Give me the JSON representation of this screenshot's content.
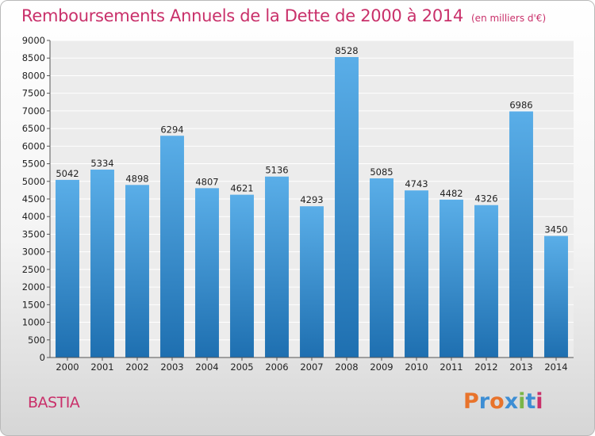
{
  "title": "Remboursements Annuels de la Dette de 2000 à 2014",
  "subtitle": "(en milliers d'€)",
  "commune": "BASTIA",
  "logo": {
    "text": "Proxiti",
    "letter_colors": [
      "#e8732b",
      "#3d8ed4",
      "#e8732b",
      "#3d8ed4",
      "#7ab648",
      "#3d8ed4",
      "#c9306a"
    ]
  },
  "colors": {
    "title": "#c9306a",
    "bar_top": "#5aaee8",
    "bar_bottom": "#1e6fb0"
  },
  "chart_data": {
    "type": "bar",
    "title": "Remboursements Annuels de la Dette de 2000 à 2014",
    "subtitle": "(en milliers d'€)",
    "xlabel": "",
    "ylabel": "",
    "categories": [
      "2000",
      "2001",
      "2002",
      "2003",
      "2004",
      "2005",
      "2006",
      "2007",
      "2008",
      "2009",
      "2010",
      "2011",
      "2012",
      "2013",
      "2014"
    ],
    "values": [
      5042,
      5334,
      4898,
      6294,
      4807,
      4621,
      5136,
      4293,
      8528,
      5085,
      4743,
      4482,
      4326,
      6986,
      3450
    ],
    "ylim": [
      0,
      9000
    ],
    "yticks": [
      0,
      500,
      1000,
      1500,
      2000,
      2500,
      3000,
      3500,
      4000,
      4500,
      5000,
      5500,
      6000,
      6500,
      7000,
      7500,
      8000,
      8500,
      9000
    ],
    "grid": true,
    "legend": "none",
    "data_labels": true
  }
}
